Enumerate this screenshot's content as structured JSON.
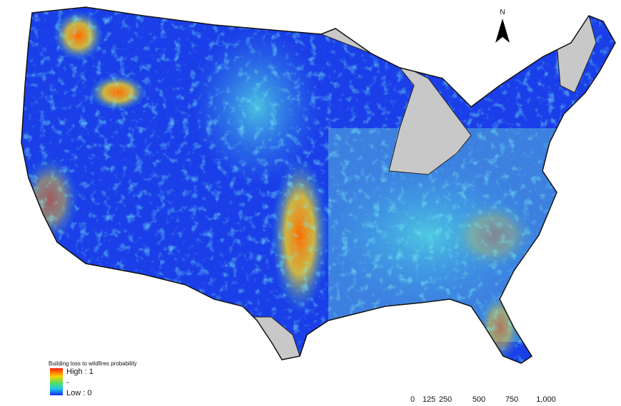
{
  "legend": {
    "title": "Building loss to wildfires probability",
    "high": "High : 1",
    "middle": "-",
    "low": "Low : 0"
  },
  "north_arrow": {
    "label": "N"
  },
  "scale_bar": {
    "labels": [
      "0",
      "125",
      "250",
      "500",
      "750",
      "1,000"
    ]
  }
}
